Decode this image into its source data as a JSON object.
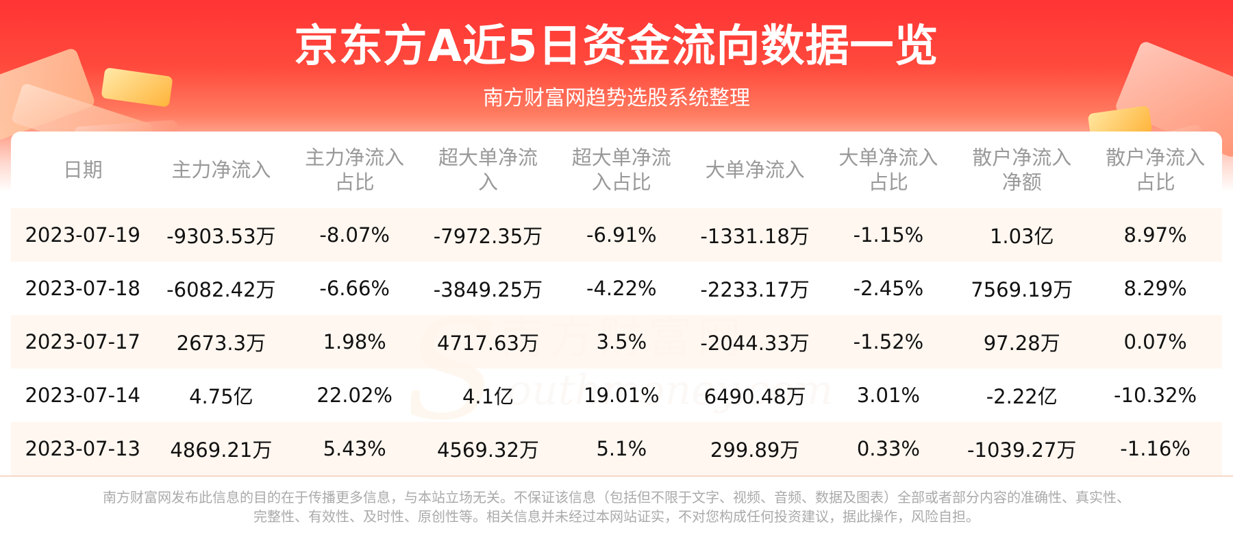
{
  "header": {
    "title": "京东方A近5日资金流向数据一览",
    "subtitle": "南方财富网趋势选股系统整理"
  },
  "watermark": {
    "text_cn": "南方财富网",
    "text_en": "outhmoney.com"
  },
  "table": {
    "columns": [
      {
        "line1": "日期",
        "line2": ""
      },
      {
        "line1": "主力净流入",
        "line2": ""
      },
      {
        "line1": "主力净流入",
        "line2": "占比"
      },
      {
        "line1": "超大单净流",
        "line2": "入"
      },
      {
        "line1": "超大单净流",
        "line2": "入占比"
      },
      {
        "line1": "大单净流入",
        "line2": ""
      },
      {
        "line1": "大单净流入",
        "line2": "占比"
      },
      {
        "line1": "散户净流入",
        "line2": "净额"
      },
      {
        "line1": "散户净流入",
        "line2": "占比"
      }
    ],
    "rows": [
      [
        "2023-07-19",
        "-9303.53万",
        "-8.07%",
        "-7972.35万",
        "-6.91%",
        "-1331.18万",
        "-1.15%",
        "1.03亿",
        "8.97%"
      ],
      [
        "2023-07-18",
        "-6082.42万",
        "-6.66%",
        "-3849.25万",
        "-4.22%",
        "-2233.17万",
        "-2.45%",
        "7569.19万",
        "8.29%"
      ],
      [
        "2023-07-17",
        "2673.3万",
        "1.98%",
        "4717.63万",
        "3.5%",
        "-2044.33万",
        "-1.52%",
        "97.28万",
        "0.07%"
      ],
      [
        "2023-07-14",
        "4.75亿",
        "22.02%",
        "4.1亿",
        "19.01%",
        "6490.48万",
        "3.01%",
        "-2.22亿",
        "-10.32%"
      ],
      [
        "2023-07-13",
        "4869.21万",
        "5.43%",
        "4569.32万",
        "5.1%",
        "299.89万",
        "0.33%",
        "-1039.27万",
        "-1.16%"
      ]
    ]
  },
  "footer": {
    "line1": "南方财富网发布此信息的目的在于传播更多信息，与本站立场无关。不保证该信息（包括但不限于文字、视频、音频、数据及图表）全部或者部分内容的准确性、真实性、",
    "line2": "完整性、有效性、及时性、原创性等。相关信息并未经过本网站证实，不对您构成任何投资建议，据此操作，风险自担。"
  },
  "colors": {
    "header_red": "#ff3434",
    "row_tint": "#fff6ee",
    "header_text": "#999999",
    "cell_text": "#111111"
  }
}
